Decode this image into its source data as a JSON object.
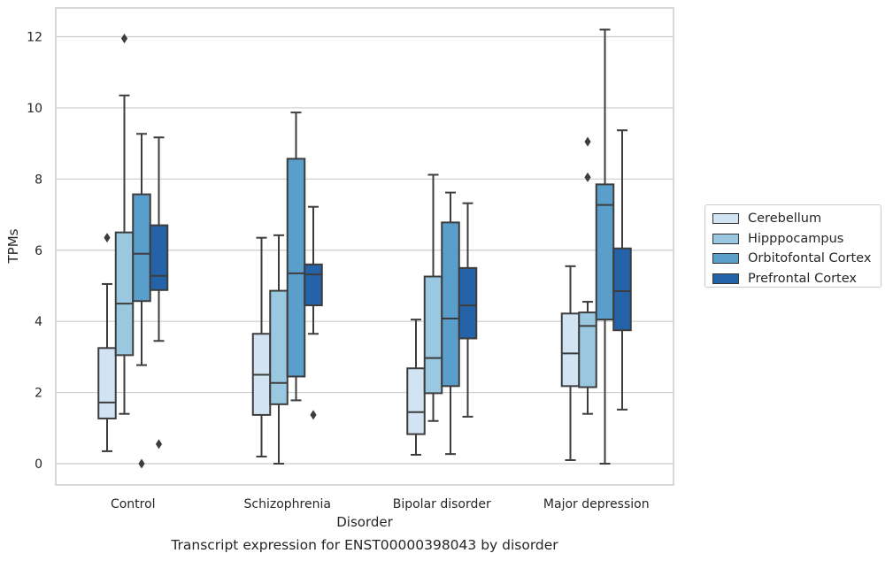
{
  "chart_data": {
    "type": "box",
    "caption": "Transcript expression for ENST00000398043 by disorder",
    "xlabel": "Disorder",
    "ylabel": "TPMs",
    "ylim": [
      -0.6,
      12.8
    ],
    "yticks": [
      0,
      2,
      4,
      6,
      8,
      10,
      12
    ],
    "grid": "horizontal",
    "legend_position": "right",
    "categories": [
      "Control",
      "Schizophrenia",
      "Bipolar disorder",
      "Major depression"
    ],
    "series": [
      {
        "name": "Cerebellum",
        "color": "#d2e3f3",
        "boxes": [
          {
            "whislo": 0.35,
            "q1": 1.27,
            "med": 1.72,
            "q3": 3.25,
            "whishi": 5.05,
            "fliers": [
              6.35
            ]
          },
          {
            "whislo": 0.2,
            "q1": 1.37,
            "med": 2.5,
            "q3": 3.65,
            "whishi": 6.35,
            "fliers": []
          },
          {
            "whislo": 0.25,
            "q1": 0.83,
            "med": 1.45,
            "q3": 2.68,
            "whishi": 4.05,
            "fliers": []
          },
          {
            "whislo": 0.1,
            "q1": 2.18,
            "med": 3.1,
            "q3": 4.22,
            "whishi": 5.55,
            "fliers": []
          }
        ]
      },
      {
        "name": "Hipppocampus",
        "color": "#9ac8e0",
        "boxes": [
          {
            "whislo": 1.4,
            "q1": 3.05,
            "med": 4.5,
            "q3": 6.5,
            "whishi": 10.35,
            "fliers": [
              11.95
            ]
          },
          {
            "whislo": 0.0,
            "q1": 1.67,
            "med": 2.27,
            "q3": 4.86,
            "whishi": 6.42,
            "fliers": []
          },
          {
            "whislo": 1.2,
            "q1": 1.98,
            "med": 2.97,
            "q3": 5.26,
            "whishi": 8.12,
            "fliers": []
          },
          {
            "whislo": 1.4,
            "q1": 2.15,
            "med": 3.87,
            "q3": 4.25,
            "whishi": 4.55,
            "fliers": [
              8.05,
              9.05
            ]
          }
        ]
      },
      {
        "name": "Orbitofontal Cortex",
        "color": "#5a9ecc",
        "boxes": [
          {
            "whislo": 2.77,
            "q1": 4.57,
            "med": 5.9,
            "q3": 7.57,
            "whishi": 9.27,
            "fliers": [
              0.0
            ]
          },
          {
            "whislo": 1.78,
            "q1": 2.45,
            "med": 5.35,
            "q3": 8.57,
            "whishi": 9.87,
            "fliers": []
          },
          {
            "whislo": 0.27,
            "q1": 2.18,
            "med": 4.08,
            "q3": 6.78,
            "whishi": 7.62,
            "fliers": []
          },
          {
            "whislo": 0.0,
            "q1": 4.05,
            "med": 7.27,
            "q3": 7.85,
            "whishi": 12.2,
            "fliers": []
          }
        ]
      },
      {
        "name": "Prefrontal Cortex",
        "color": "#2563a8",
        "boxes": [
          {
            "whislo": 3.45,
            "q1": 4.88,
            "med": 5.28,
            "q3": 6.7,
            "whishi": 9.17,
            "fliers": [
              0.55
            ]
          },
          {
            "whislo": 3.65,
            "q1": 4.45,
            "med": 5.32,
            "q3": 5.6,
            "whishi": 7.22,
            "fliers": [
              1.37
            ]
          },
          {
            "whislo": 1.32,
            "q1": 3.52,
            "med": 4.45,
            "q3": 5.5,
            "whishi": 7.32,
            "fliers": []
          },
          {
            "whislo": 1.52,
            "q1": 3.75,
            "med": 4.85,
            "q3": 6.05,
            "whishi": 9.37,
            "fliers": []
          }
        ]
      }
    ]
  }
}
